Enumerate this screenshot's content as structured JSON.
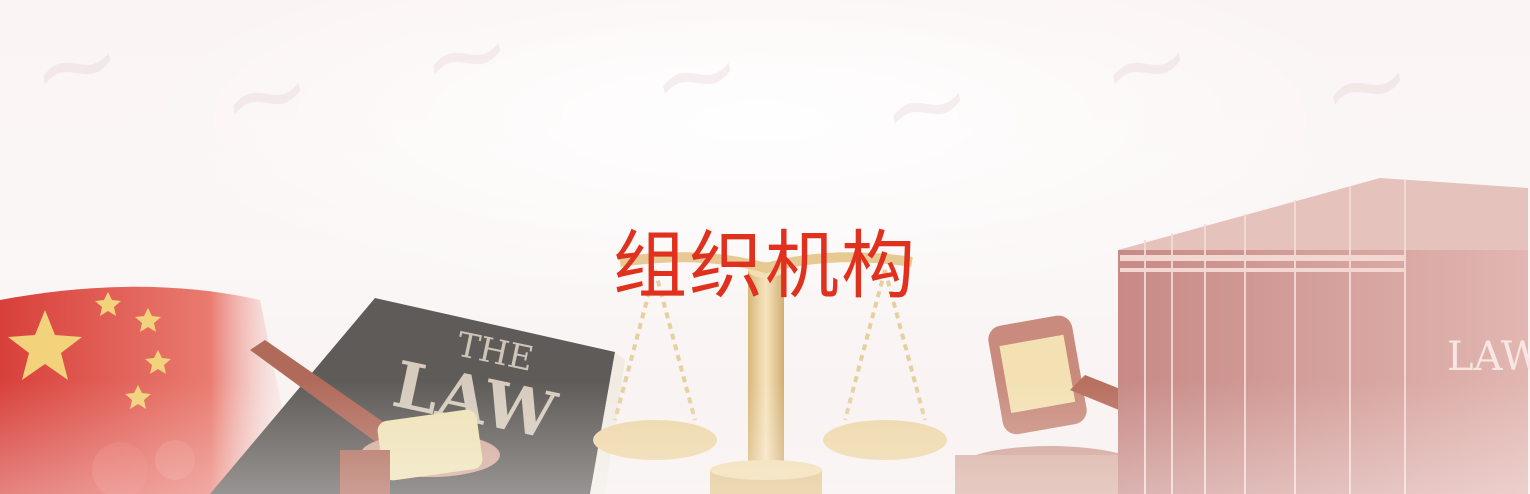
{
  "banner": {
    "title": "组织机构",
    "book_label_line1": "THE",
    "book_label_line2": "LAW",
    "books_label": "LAW"
  },
  "colors": {
    "title": "#e0301e",
    "flag_red": "#d8403a",
    "flag_star": "#f2d27a",
    "book_dark": "#5e5a57",
    "books_spine": "#c98e8a",
    "brass": "#e8cf9f",
    "gavel_wood": "#b06a5a"
  }
}
